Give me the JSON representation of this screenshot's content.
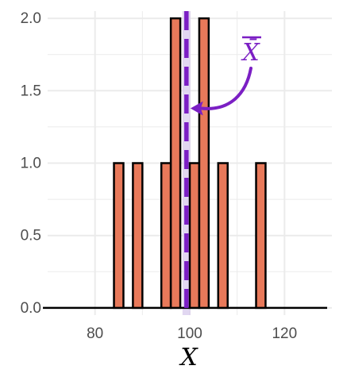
{
  "chart_data": {
    "type": "bar",
    "title": "",
    "xlabel": "X",
    "ylabel": "",
    "xlim": [
      70,
      130
    ],
    "ylim": [
      -0.05,
      2.05
    ],
    "bin_width": 2,
    "x_ticks": [
      80,
      100,
      120
    ],
    "y_ticks": [
      0.0,
      0.5,
      1.0,
      1.5,
      2.0
    ],
    "x_tick_labels": [
      "80",
      "100",
      "120"
    ],
    "y_tick_labels": [
      "0.0",
      "0.5",
      "1.0",
      "1.5",
      "2.0"
    ],
    "grid": true,
    "bins": [
      {
        "x": 85,
        "count": 1
      },
      {
        "x": 89,
        "count": 1
      },
      {
        "x": 95,
        "count": 1
      },
      {
        "x": 97,
        "count": 2
      },
      {
        "x": 101,
        "count": 1
      },
      {
        "x": 103,
        "count": 2
      },
      {
        "x": 107,
        "count": 1
      },
      {
        "x": 115,
        "count": 1
      }
    ],
    "baseline_range": [
      70,
      130
    ],
    "mean_line": {
      "x": 99.3,
      "style": "dashed"
    },
    "annotation": {
      "text": "X̄",
      "points_to": {
        "x": 99.3,
        "y": 1.4
      }
    },
    "colors": {
      "bar_fill": "#e8795a",
      "bar_stroke": "#000000",
      "mean_line": "#7b1fc4",
      "mean_band": "#d9cdee",
      "grid": "#ebebeb"
    }
  }
}
